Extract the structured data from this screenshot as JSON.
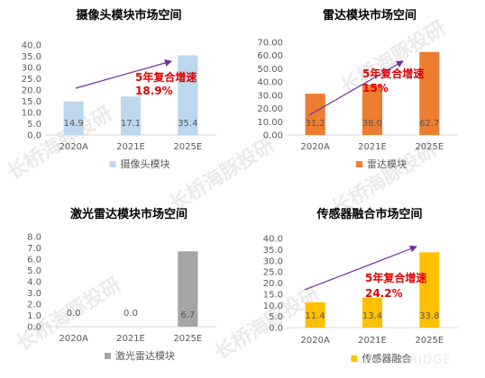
{
  "chart_data": [
    {
      "type": "bar",
      "title": "摄像头模块市场空间",
      "categories": [
        "2020A",
        "2021E",
        "2025E"
      ],
      "series": [
        {
          "name": "摄像头模块",
          "values": [
            14.9,
            17.1,
            35.4
          ]
        }
      ],
      "data_labels": [
        "14.9",
        "17.1",
        "35.4"
      ],
      "ylim": [
        0,
        40
      ],
      "ystep": 5,
      "ytick_decimals": 1,
      "color": "#bdd7ee",
      "legend_position": "bottom",
      "annotation": {
        "line1": "5年复合增速",
        "line2": "18.9%"
      }
    },
    {
      "type": "bar",
      "title": "雷达模块市场空间",
      "categories": [
        "2020A",
        "2021E",
        "2025E"
      ],
      "series": [
        {
          "name": "雷达模块",
          "values": [
            31.2,
            38.0,
            62.7
          ]
        }
      ],
      "data_labels": [
        "31.2",
        "38.0",
        "62.7"
      ],
      "ylim": [
        0,
        70
      ],
      "ystep": 10,
      "ytick_decimals": 2,
      "color": "#ed7d31",
      "legend_position": "bottom",
      "annotation": {
        "line1": "5年复合增速",
        "line2": "15%"
      }
    },
    {
      "type": "bar",
      "title": "激光雷达模块市场空间",
      "categories": [
        "2020A",
        "2021E",
        "2025E"
      ],
      "series": [
        {
          "name": "激光雷达模块",
          "values": [
            0.0,
            0.0,
            6.7
          ]
        }
      ],
      "data_labels": [
        "0.0",
        "0.0",
        "6.7"
      ],
      "ylim": [
        0,
        8
      ],
      "ystep": 1,
      "ytick_decimals": 1,
      "color": "#a5a5a5",
      "legend_position": "bottom"
    },
    {
      "type": "bar",
      "title": "传感器融合市场空间",
      "categories": [
        "2020A",
        "2021E",
        "2025E"
      ],
      "series": [
        {
          "name": "传感器融合",
          "values": [
            11.4,
            13.4,
            33.8
          ]
        }
      ],
      "data_labels": [
        "11.4",
        "13.4",
        "33.8"
      ],
      "ylim": [
        0,
        40
      ],
      "ystep": 5,
      "ytick_decimals": 1,
      "color": "#ffc000",
      "legend_position": "bottom",
      "annotation": {
        "line1": "5年复合增速",
        "line2": "24.2%"
      }
    }
  ],
  "colors": {
    "annotation_text": "#e00000",
    "trend_arrow": "#7030a0",
    "axis_text": "#595959",
    "watermark": "#d9d9d9"
  },
  "watermark": {
    "cn": "长桥海豚投研",
    "en": "LONGBRIDGE"
  }
}
